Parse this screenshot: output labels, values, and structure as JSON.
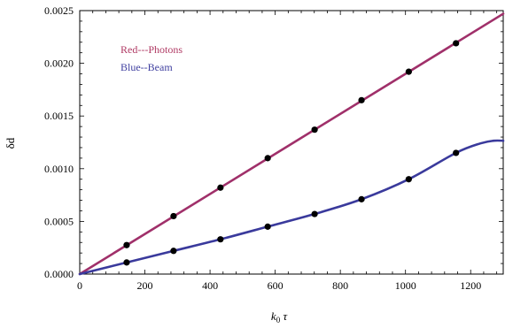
{
  "chart_data": {
    "type": "line",
    "xlabel": {
      "main": "k",
      "sub": "0",
      "rest": " τ"
    },
    "ylabel": "δd",
    "xlim": [
      0,
      1300
    ],
    "ylim": [
      0,
      0.0025
    ],
    "x_ticks": [
      0,
      200,
      400,
      600,
      800,
      1000,
      1200
    ],
    "y_ticks": [
      0.0,
      0.0005,
      0.001,
      0.0015,
      0.002,
      0.0025
    ],
    "y_tick_labels": [
      "0.0000",
      "0.0005",
      "0.0010",
      "0.0015",
      "0.0020",
      "0.0025"
    ],
    "legend_text": [
      "Red---Photons",
      "Blue--Beam"
    ],
    "legend_colors": [
      "#b03a64",
      "#4040a0"
    ],
    "grid": false,
    "series": [
      {
        "name": "Red---Photons",
        "color": "#a0306a",
        "curve": [
          [
            0,
            0
          ],
          [
            1300,
            0.00247
          ]
        ],
        "points": [
          [
            144,
            0.000275
          ],
          [
            288,
            0.00055
          ],
          [
            432,
            0.00082
          ],
          [
            577,
            0.0011
          ],
          [
            721,
            0.00137
          ],
          [
            865,
            0.00165
          ],
          [
            1010,
            0.00192
          ],
          [
            1155,
            0.00219
          ]
        ]
      },
      {
        "name": "Blue--Beam",
        "color": "#3a3a9c",
        "curve": [
          [
            0,
            0
          ],
          [
            144,
            0.00011
          ],
          [
            288,
            0.00022
          ],
          [
            432,
            0.00033
          ],
          [
            577,
            0.00045
          ],
          [
            721,
            0.00057
          ],
          [
            865,
            0.00071
          ],
          [
            1010,
            0.0009
          ],
          [
            1155,
            0.00115
          ],
          [
            1230,
            0.00124
          ],
          [
            1270,
            0.001265
          ],
          [
            1300,
            0.001265
          ]
        ],
        "points": [
          [
            144,
            0.00011
          ],
          [
            288,
            0.00022
          ],
          [
            432,
            0.00033
          ],
          [
            577,
            0.00045
          ],
          [
            721,
            0.00057
          ],
          [
            865,
            0.00071
          ],
          [
            1010,
            0.0009
          ],
          [
            1155,
            0.00115
          ]
        ]
      }
    ]
  }
}
